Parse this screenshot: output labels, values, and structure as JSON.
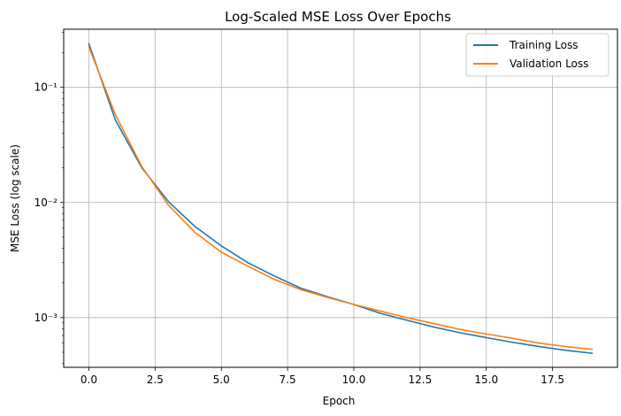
{
  "chart_data": {
    "type": "line",
    "title": "Log-Scaled MSE Loss Over Epochs",
    "xlabel": "Epoch",
    "ylabel": "MSE Loss (log scale)",
    "yscale": "log",
    "xlim": [
      -0.95,
      19.95
    ],
    "ylim": [
      0.00037,
      0.32
    ],
    "grid": true,
    "legend_position": "top-right",
    "x_ticks": [
      0.0,
      2.5,
      5.0,
      7.5,
      10.0,
      12.5,
      15.0,
      17.5
    ],
    "x_tick_labels": [
      "0.0",
      "2.5",
      "5.0",
      "7.5",
      "10.0",
      "12.5",
      "15.0",
      "17.5"
    ],
    "y_ticks": [
      0.1,
      0.01,
      0.001
    ],
    "y_tick_labels": [
      "10⁻¹",
      "10⁻²",
      "10⁻³"
    ],
    "x": [
      0,
      1,
      2,
      3,
      4,
      5,
      6,
      7,
      8,
      9,
      10,
      11,
      12,
      13,
      14,
      15,
      16,
      17,
      18,
      19
    ],
    "series": [
      {
        "name": "Training Loss",
        "color": "#1f77b4",
        "values": [
          0.24,
          0.052,
          0.02,
          0.0102,
          0.0062,
          0.0042,
          0.003,
          0.0023,
          0.0018,
          0.00152,
          0.0013,
          0.00109,
          0.00095,
          0.00083,
          0.00074,
          0.00067,
          0.00061,
          0.00056,
          0.00052,
          0.00049
        ]
      },
      {
        "name": "Validation Loss",
        "color": "#ff7f0e",
        "values": [
          0.225,
          0.058,
          0.0205,
          0.0095,
          0.0055,
          0.0037,
          0.0028,
          0.00215,
          0.00175,
          0.0015,
          0.0013,
          0.00114,
          0.001,
          0.00089,
          0.00079,
          0.00072,
          0.00066,
          0.0006,
          0.00056,
          0.00053
        ]
      }
    ]
  }
}
